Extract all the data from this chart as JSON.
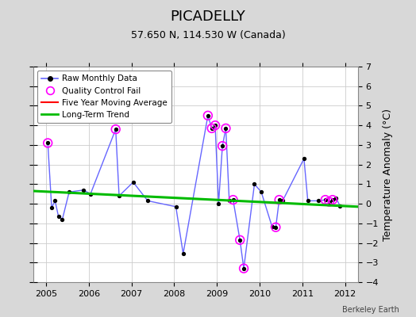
{
  "title": "PICADELLY",
  "subtitle": "57.650 N, 114.530 W (Canada)",
  "ylabel": "Temperature Anomaly (°C)",
  "credit": "Berkeley Earth",
  "xlim": [
    2004.7,
    2012.3
  ],
  "ylim": [
    -4,
    7
  ],
  "yticks": [
    -4,
    -3,
    -2,
    -1,
    0,
    1,
    2,
    3,
    4,
    5,
    6,
    7
  ],
  "xticks": [
    2005,
    2006,
    2007,
    2008,
    2009,
    2010,
    2011,
    2012
  ],
  "bg_color": "#d8d8d8",
  "plot_bg_color": "#ffffff",
  "raw_x": [
    2005.04,
    2005.13,
    2005.21,
    2005.29,
    2005.38,
    2005.54,
    2005.88,
    2006.04,
    2006.63,
    2006.71,
    2007.04,
    2007.38,
    2008.04,
    2008.21,
    2008.79,
    2008.88,
    2008.96,
    2009.04,
    2009.13,
    2009.21,
    2009.29,
    2009.38,
    2009.54,
    2009.63,
    2009.88,
    2010.04,
    2010.29,
    2010.38,
    2010.46,
    2010.54,
    2011.04,
    2011.13,
    2011.38,
    2011.54,
    2011.63,
    2011.71,
    2011.79,
    2011.88
  ],
  "raw_y": [
    3.1,
    -0.2,
    0.15,
    -0.65,
    -0.8,
    0.6,
    0.7,
    0.5,
    3.8,
    0.4,
    1.1,
    0.15,
    -0.15,
    -2.55,
    4.5,
    3.85,
    4.0,
    0.0,
    2.95,
    3.85,
    0.15,
    0.2,
    -1.85,
    -3.3,
    1.0,
    0.6,
    -1.15,
    -1.2,
    0.2,
    0.15,
    2.3,
    0.15,
    0.15,
    0.2,
    0.1,
    0.2,
    0.3,
    -0.1
  ],
  "qc_x": [
    2005.04,
    2006.63,
    2008.79,
    2008.88,
    2008.96,
    2009.13,
    2009.21,
    2009.38,
    2009.54,
    2009.63,
    2010.38,
    2010.46,
    2011.54,
    2011.63,
    2011.71
  ],
  "qc_y": [
    3.1,
    3.8,
    4.5,
    3.85,
    4.0,
    2.95,
    3.85,
    0.2,
    -1.85,
    -3.3,
    -1.2,
    0.2,
    0.2,
    0.1,
    0.2
  ],
  "trend_x": [
    2004.7,
    2012.3
  ],
  "trend_y": [
    0.65,
    -0.15
  ],
  "raw_line_color": "#6666ff",
  "raw_marker_color": "#000000",
  "qc_marker_color": "#ff00ff",
  "trend_color": "#00bb00",
  "moving_avg_color": "#ff0000",
  "grid_color": "#cccccc",
  "title_fontsize": 13,
  "subtitle_fontsize": 9,
  "tick_fontsize": 8,
  "ylabel_fontsize": 9
}
